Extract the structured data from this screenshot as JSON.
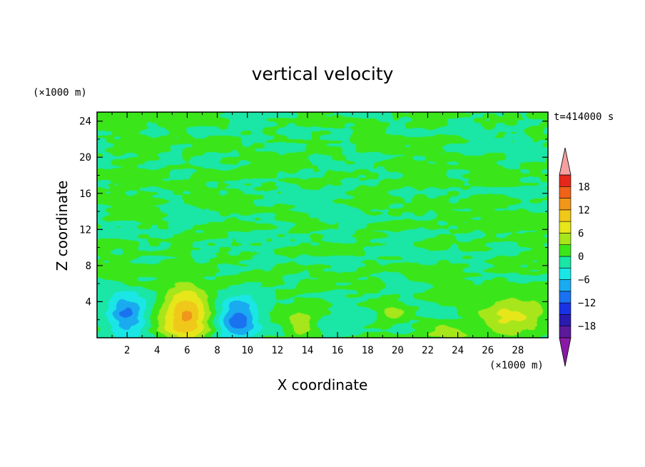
{
  "chart_data": {
    "type": "heatmap",
    "title": "vertical velocity",
    "xlabel": "X coordinate",
    "ylabel": "Z coordinate",
    "x_unit": "(×1000 m)",
    "y_unit": "(×1000 m)",
    "time_label": "t=414000 s",
    "xlim": [
      0,
      30
    ],
    "ylim": [
      0,
      25
    ],
    "x_ticks": [
      2,
      4,
      6,
      8,
      10,
      12,
      14,
      16,
      18,
      20,
      22,
      24,
      26,
      28
    ],
    "y_ticks": [
      4,
      8,
      12,
      16,
      20,
      24
    ],
    "colorbar": {
      "levels": [
        -21,
        -18,
        -15,
        -12,
        -9,
        -6,
        -3,
        0,
        3,
        6,
        9,
        12,
        15,
        18,
        21
      ],
      "tick_labels": [
        "18",
        "12",
        "6",
        "0",
        "−6",
        "−12",
        "−18"
      ],
      "tick_values": [
        18,
        12,
        6,
        0,
        -6,
        -12,
        -18
      ],
      "colors": [
        "#5a1a9a",
        "#2a1ab0",
        "#1a32e6",
        "#1a72f0",
        "#1aaaf0",
        "#1ae6e6",
        "#1ae6a6",
        "#3ae61a",
        "#a6e61a",
        "#e6e61a",
        "#f0c81a",
        "#f0961a",
        "#f0621a",
        "#e6281a"
      ],
      "over_color": "#f4a0a0",
      "under_color": "#8a1aa6"
    },
    "features": [
      {
        "x": 5.9,
        "z": 2.6,
        "value": 13,
        "sx": 1.05,
        "sz": 2.2
      },
      {
        "x": 2.0,
        "z": 2.4,
        "value": -10,
        "sx": 0.9,
        "sz": 1.6
      },
      {
        "x": 9.4,
        "z": 2.2,
        "value": -11,
        "sx": 0.9,
        "sz": 1.8
      },
      {
        "x": 13.5,
        "z": 1.4,
        "value": 5,
        "sx": 0.6,
        "sz": 1.3
      },
      {
        "x": 19.7,
        "z": 2.7,
        "value": 4,
        "sx": 0.6,
        "sz": 0.8
      },
      {
        "x": 23.2,
        "z": 0.8,
        "value": 4,
        "sx": 1.0,
        "sz": 0.6
      },
      {
        "x": 27.6,
        "z": 2.3,
        "value": 6,
        "sx": 1.4,
        "sz": 1.6
      },
      {
        "x": 16.0,
        "z": 1.3,
        "value": -3,
        "sx": 1.0,
        "sz": 0.7
      },
      {
        "x": 22.2,
        "z": 2.8,
        "value": -3,
        "sx": 0.7,
        "sz": 0.35
      }
    ]
  }
}
